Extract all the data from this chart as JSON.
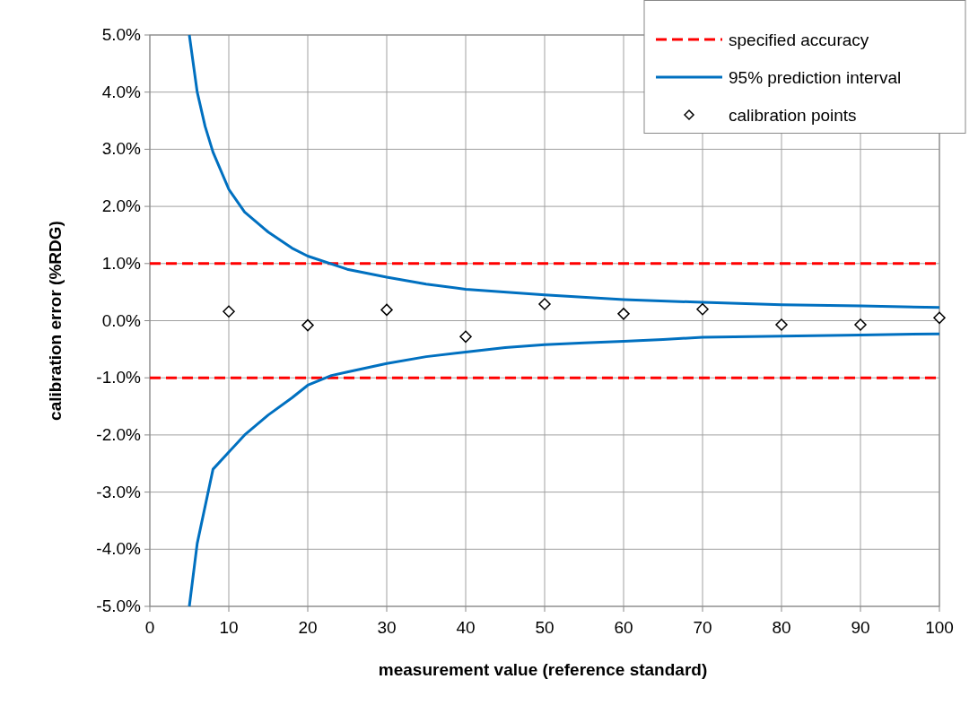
{
  "chart_data": {
    "type": "line",
    "xlabel": "measurement value (reference standard)",
    "ylabel": "calibration error (%RDG)",
    "xlim": [
      0,
      100
    ],
    "xticks": [
      0,
      10,
      20,
      30,
      40,
      50,
      60,
      70,
      80,
      90,
      100
    ],
    "ylim": [
      -5,
      5
    ],
    "yticks": [
      {
        "value": -5,
        "label": "-5.0%"
      },
      {
        "value": -4,
        "label": "-4.0%"
      },
      {
        "value": -3,
        "label": "-3.0%"
      },
      {
        "value": -2,
        "label": "-2.0%"
      },
      {
        "value": -1,
        "label": "-1.0%"
      },
      {
        "value": 0,
        "label": "0.0%"
      },
      {
        "value": 1,
        "label": "1.0%"
      },
      {
        "value": 2,
        "label": "2.0%"
      },
      {
        "value": 3,
        "label": "3.0%"
      },
      {
        "value": 4,
        "label": "4.0%"
      },
      {
        "value": 5,
        "label": "5.0%"
      }
    ],
    "grid": true,
    "legend": "top right",
    "marker": "none",
    "series": [
      {
        "name": "specified accuracy",
        "color": "#ff0000",
        "line_style": "dashed",
        "x": [
          0,
          100
        ],
        "values": [
          1,
          1
        ]
      },
      {
        "color": "#ff0000",
        "line_style": "dashed",
        "x": [
          0,
          100
        ],
        "values": [
          -1,
          -1
        ]
      },
      {
        "name": "95% prediction interval",
        "color": "#0070c0",
        "line_style": "solid",
        "x": [
          5,
          6,
          7,
          8,
          10,
          12,
          15,
          18,
          20,
          25,
          30,
          35,
          40,
          50,
          60,
          70,
          80,
          90,
          100
        ],
        "values": [
          5.0,
          4.0,
          3.4,
          2.95,
          2.3,
          1.9,
          1.55,
          1.27,
          1.13,
          0.9,
          0.76,
          0.64,
          0.55,
          0.45,
          0.37,
          0.32,
          0.28,
          0.26,
          0.23
        ]
      },
      {
        "color": "#0070c0",
        "line_style": "solid",
        "x": [
          5,
          6,
          8,
          10,
          12,
          15,
          18,
          20,
          23,
          25,
          30,
          35,
          40,
          45,
          50,
          55,
          60,
          65,
          70,
          80,
          90,
          100
        ],
        "values": [
          -5.0,
          -3.9,
          -2.6,
          -2.3,
          -2.0,
          -1.65,
          -1.35,
          -1.13,
          -0.96,
          -0.9,
          -0.75,
          -0.63,
          -0.55,
          -0.47,
          -0.42,
          -0.39,
          -0.36,
          -0.33,
          -0.29,
          -0.27,
          -0.25,
          -0.23
        ]
      },
      {
        "name": "calibration points",
        "type": "scatter",
        "color": "#000000",
        "marker": "diamond",
        "x": [
          10,
          20,
          30,
          40,
          50,
          60,
          70,
          80,
          90,
          100
        ],
        "values": [
          0.16,
          -0.08,
          0.19,
          -0.28,
          0.29,
          0.12,
          0.2,
          -0.07,
          -0.07,
          0.05
        ]
      }
    ]
  }
}
